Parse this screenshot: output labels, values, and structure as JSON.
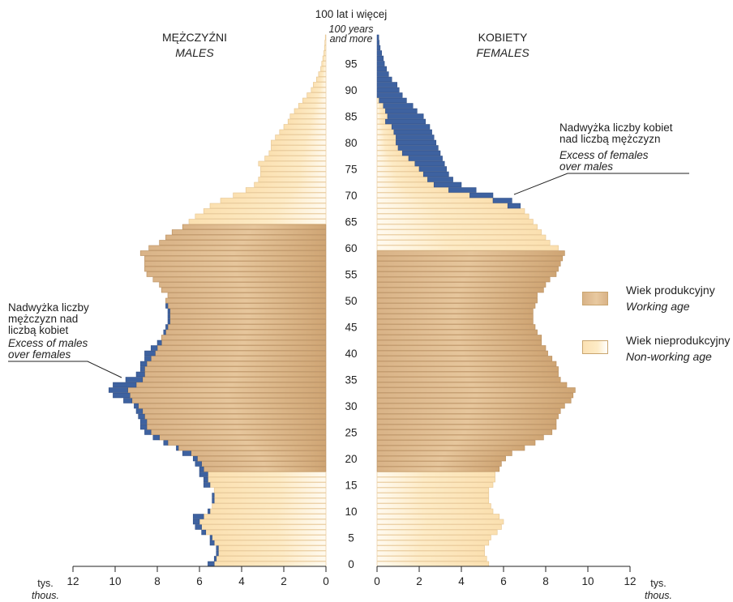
{
  "chart_data": {
    "type": "bar",
    "orientation": "population-pyramid",
    "left_title": "MĘŻCZYŹNI",
    "left_subtitle": "MALES",
    "right_title": "KOBIETY",
    "right_subtitle": "FEMALES",
    "top_age_label": "100 lat i więcej",
    "top_age_label_en": "100 years and more",
    "unit_label": "tys.",
    "unit_label_en": "thous.",
    "x_ticks": [
      12,
      10,
      8,
      6,
      4,
      2,
      0
    ],
    "xlim": [
      0,
      12
    ],
    "age_ticks": [
      0,
      5,
      10,
      15,
      20,
      25,
      30,
      35,
      40,
      45,
      50,
      55,
      60,
      65,
      70,
      75,
      80,
      85,
      90,
      95
    ],
    "working_age": {
      "males": [
        18,
        64
      ],
      "females": [
        18,
        59
      ]
    },
    "colors": {
      "working_age": "#d9b387",
      "non_working_age": "#fdebc6",
      "excess": "#3e62a0"
    },
    "legend": [
      {
        "key": "working",
        "label": "Wiek produkcyjny",
        "label_en": "Working age"
      },
      {
        "key": "nonworking",
        "label": "Wiek nieprodukcyjny",
        "label_en": "Non-working age"
      }
    ],
    "annotations": {
      "excess_males": [
        "Nadwyżka liczby",
        "mężczyzn nad",
        "liczbą kobiet"
      ],
      "excess_males_en": [
        "Excess of males",
        "over females"
      ],
      "excess_females": [
        "Nadwyżka liczby kobiet",
        "nad liczbą mężczyzn"
      ],
      "excess_females_en": [
        "Excess of females",
        "over males"
      ]
    },
    "ages": [
      0,
      1,
      2,
      3,
      4,
      5,
      6,
      7,
      8,
      9,
      10,
      11,
      12,
      13,
      14,
      15,
      16,
      17,
      18,
      19,
      20,
      21,
      22,
      23,
      24,
      25,
      26,
      27,
      28,
      29,
      30,
      31,
      32,
      33,
      34,
      35,
      36,
      37,
      38,
      39,
      40,
      41,
      42,
      43,
      44,
      45,
      46,
      47,
      48,
      49,
      50,
      51,
      52,
      53,
      54,
      55,
      56,
      57,
      58,
      59,
      60,
      61,
      62,
      63,
      64,
      65,
      66,
      67,
      68,
      69,
      70,
      71,
      72,
      73,
      74,
      75,
      76,
      77,
      78,
      79,
      80,
      81,
      82,
      83,
      84,
      85,
      86,
      87,
      88,
      89,
      90,
      91,
      92,
      93,
      94,
      95,
      96,
      97,
      98,
      99,
      100
    ],
    "series": [
      {
        "name": "MĘŻCZYŹNI",
        "values": [
          5.6,
          5.3,
          5.2,
          5.2,
          5.5,
          5.5,
          5.9,
          6.2,
          6.3,
          6.3,
          5.6,
          5.4,
          5.4,
          5.4,
          5.3,
          5.8,
          5.8,
          6.0,
          6.0,
          6.2,
          6.3,
          6.8,
          7.1,
          7.7,
          8.2,
          8.6,
          8.8,
          8.8,
          8.9,
          9.0,
          9.1,
          9.6,
          10.1,
          10.3,
          10.1,
          9.5,
          9.0,
          8.8,
          8.8,
          8.6,
          8.6,
          8.3,
          8.0,
          7.8,
          7.7,
          7.6,
          7.5,
          7.5,
          7.5,
          7.6,
          7.6,
          7.5,
          7.8,
          7.9,
          8.2,
          8.5,
          8.6,
          8.6,
          8.6,
          8.8,
          8.4,
          7.9,
          7.6,
          7.3,
          6.8,
          6.5,
          6.2,
          5.8,
          5.5,
          5.0,
          4.4,
          3.8,
          3.4,
          3.2,
          3.1,
          3.1,
          3.2,
          2.9,
          2.7,
          2.6,
          2.6,
          2.4,
          2.2,
          2.0,
          1.8,
          1.7,
          1.5,
          1.3,
          1.1,
          0.9,
          0.7,
          0.6,
          0.45,
          0.35,
          0.25,
          0.2,
          0.15,
          0.12,
          0.08,
          0.05,
          0.03
        ]
      },
      {
        "name": "KOBIETY",
        "values": [
          5.3,
          5.2,
          5.1,
          5.1,
          5.3,
          5.4,
          5.7,
          5.9,
          6.0,
          5.8,
          5.5,
          5.4,
          5.3,
          5.3,
          5.3,
          5.5,
          5.6,
          5.6,
          5.8,
          5.9,
          6.1,
          6.4,
          7.0,
          7.5,
          7.9,
          8.3,
          8.5,
          8.5,
          8.6,
          8.7,
          8.9,
          9.2,
          9.3,
          9.4,
          9.0,
          8.7,
          8.6,
          8.6,
          8.5,
          8.3,
          8.1,
          8.0,
          7.8,
          7.8,
          7.6,
          7.5,
          7.4,
          7.4,
          7.4,
          7.5,
          7.6,
          7.6,
          7.9,
          8.0,
          8.2,
          8.5,
          8.6,
          8.7,
          8.8,
          8.9,
          8.6,
          8.2,
          8.0,
          7.8,
          7.6,
          7.4,
          7.2,
          7.0,
          6.8,
          6.4,
          5.5,
          4.7,
          4.0,
          3.6,
          3.4,
          3.3,
          3.2,
          3.1,
          3.0,
          2.9,
          2.8,
          2.7,
          2.6,
          2.5,
          2.3,
          2.2,
          1.9,
          1.7,
          1.4,
          1.2,
          0.95,
          0.75,
          0.55,
          0.4,
          0.3,
          0.2,
          0.15,
          0.1,
          0.07,
          0.05,
          0.04
        ]
      },
      {
        "name": "excess_females",
        "values": [
          0,
          0,
          0,
          0,
          0,
          0,
          0,
          0,
          0,
          0,
          0,
          0,
          0,
          0,
          0,
          0,
          0,
          0,
          0,
          0,
          0,
          0,
          0,
          0,
          0,
          0,
          0,
          0,
          0,
          0,
          0,
          0,
          0,
          0,
          0,
          0,
          0,
          0,
          0,
          0,
          0,
          0,
          0,
          0,
          0,
          0,
          0,
          0,
          0,
          0,
          0,
          0,
          0,
          0,
          0,
          0,
          0,
          0,
          0,
          0,
          0,
          0,
          0,
          0,
          0,
          0,
          0,
          0,
          0.6,
          0.9,
          1.1,
          1.3,
          1.3,
          1.2,
          1.2,
          1.3,
          1.4,
          1.6,
          1.8,
          1.9,
          1.9,
          1.8,
          1.8,
          1.8,
          1.9,
          1.7,
          1.5,
          1.4,
          1.3,
          1.2,
          1.05,
          0.95,
          0.7,
          0.55,
          0.45,
          0.35,
          0.3,
          0.22,
          0.15,
          0.1,
          0.08
        ]
      }
    ]
  }
}
